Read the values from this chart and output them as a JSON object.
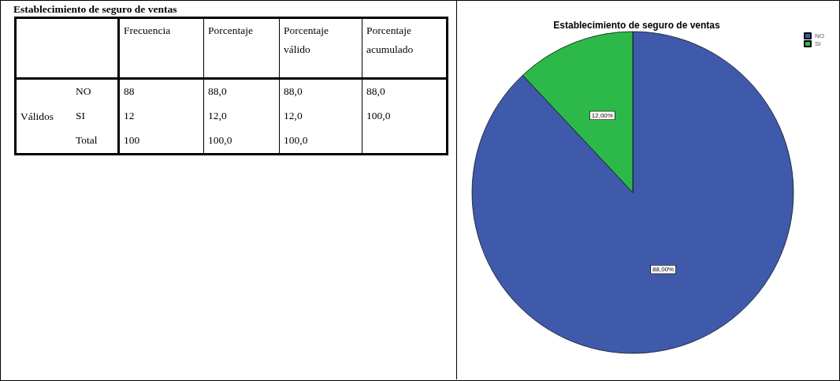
{
  "chart_data": [
    {
      "type": "other",
      "title": "Establecimiento de seguro de ventas",
      "categories": [
        "Frecuencia",
        "Porcentaje",
        "Porcentaje válido",
        "Porcentaje acumulado"
      ],
      "ylabel": "Válidos",
      "y_categories": [
        "NO",
        "SI",
        "Total"
      ],
      "cell_labels": [
        [
          "88",
          "88,0",
          "88,0",
          "88,0"
        ],
        [
          "12",
          "12,0",
          "12,0",
          "100,0"
        ],
        [
          "100",
          "100,0",
          "100,0",
          null
        ]
      ]
    },
    {
      "type": "pie",
      "title": "Establecimiento de seguro de ventas",
      "categories": [
        "NO",
        "SI"
      ],
      "values": [
        88,
        12
      ],
      "colors": [
        "#3f59ab",
        "#2db84a"
      ],
      "value_labels": [
        "88,00%",
        "12,00%"
      ],
      "legend": "top right"
    }
  ]
}
